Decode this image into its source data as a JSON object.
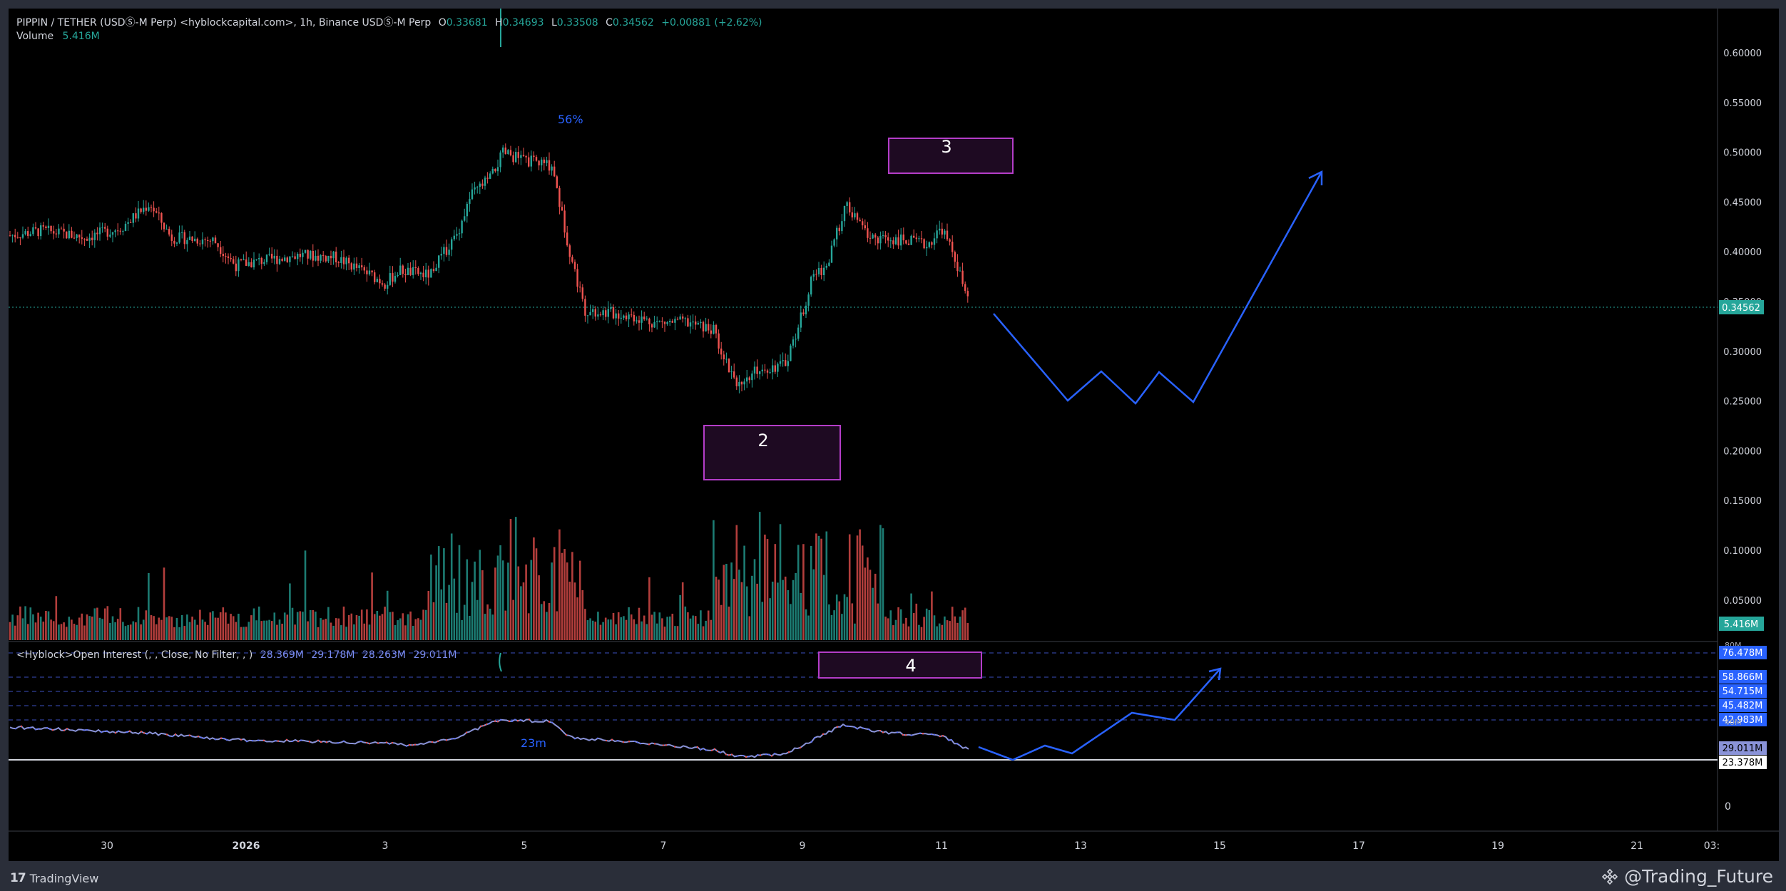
{
  "header": {
    "symbol": "PIPPIN / TETHER (USDⓈ-M Perp) <hyblockcapital.com>, 1h, Binance USDⓈ-M Perp",
    "o_label": "O",
    "o_value": "0.33681",
    "h_label": "H",
    "h_value": "0.34693",
    "l_label": "L",
    "l_value": "0.33508",
    "c_label": "C",
    "c_value": "0.34562",
    "change": "+0.00881 (+2.62%)",
    "volume_label": "Volume",
    "volume_value": "5.416M"
  },
  "indicator": {
    "title": "<Hyblock>Open Interest (, , Close, No Filter, , )",
    "values": [
      "28.369M",
      "29.178M",
      "28.263M",
      "29.011M"
    ]
  },
  "price_axis": {
    "ticks": [
      "0.60000",
      "0.55000",
      "0.50000",
      "0.45000",
      "0.40000",
      "0.35000",
      "0.30000",
      "0.25000",
      "0.20000",
      "0.15000",
      "0.10000",
      "0.05000"
    ],
    "last_price": "0.34562",
    "volume_badge": "5.416M",
    "cut_label": "80M"
  },
  "oi_axis": {
    "labels": [
      "76.478M",
      "58.866M",
      "54.715M",
      "45.482M",
      "42.983M",
      "29.011M",
      "23.378M"
    ],
    "zero": "0",
    "cut_label": "40M"
  },
  "time_axis": {
    "labels": [
      "30",
      "2026",
      "3",
      "5",
      "7",
      "9",
      "11",
      "13",
      "15",
      "17",
      "19",
      "21",
      "03:"
    ]
  },
  "annotations": {
    "wave_2": "2",
    "wave_3": "3",
    "wave_4": "4",
    "pct_label": "56%",
    "oi_label": "23m"
  },
  "footer": {
    "logo_text": "TradingView",
    "author": "@Trading_Future"
  },
  "colors": {
    "background": "#000000",
    "frame": "#2a2e39",
    "up": "#26a69a",
    "down": "#ef5350",
    "projection": "#2962ff",
    "box_border": "#b43dc8",
    "box_fill": "#1e0a22",
    "oi_line_blue": "#5b6ef5",
    "badge_green": "#26a69a",
    "badge_blue": "#2962ff"
  },
  "icons": {
    "logo": "tradingview-logo-icon",
    "author": "binance-square-icon"
  }
}
